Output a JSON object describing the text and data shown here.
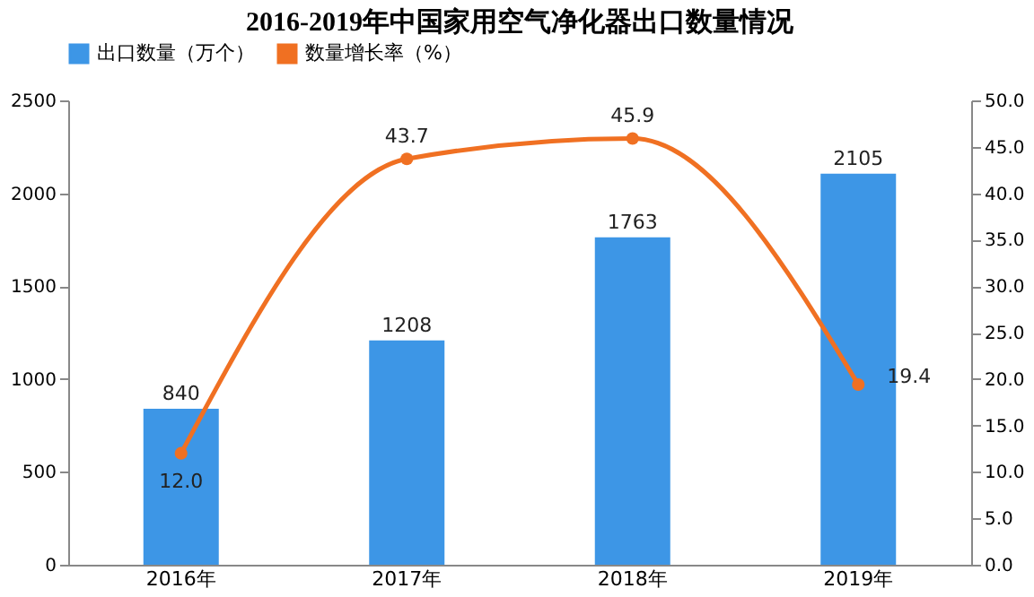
{
  "chart_data": {
    "type": "bar",
    "title": "2016-2019年中国家用空气净化器出口数量情况",
    "categories": [
      "2016年",
      "2017年",
      "2018年",
      "2019年"
    ],
    "series": [
      {
        "name": "出口数量（万个）",
        "color": "#3d96e6",
        "values": [
          840,
          1208,
          1763,
          2105
        ],
        "value_labels": [
          "840",
          "1208",
          "1763",
          "2105"
        ]
      },
      {
        "name": "数量增长率（%）",
        "type": "line",
        "axis": "y2",
        "color": "#f07022",
        "values": [
          12.0,
          43.7,
          45.9,
          19.4
        ],
        "value_labels": [
          "12.0",
          "43.7",
          "45.9",
          "19.4"
        ],
        "marker": "circle",
        "line_style": "solid"
      }
    ],
    "ylim": [
      0,
      2500
    ],
    "yticks": [
      0,
      500,
      1000,
      1500,
      2000,
      2500
    ],
    "y2lim": [
      0,
      50
    ],
    "y2ticks": [
      {
        "value": 0,
        "label": "0.0"
      },
      {
        "value": 5,
        "label": "5.0"
      },
      {
        "value": 10,
        "label": "10.0"
      },
      {
        "value": 15,
        "label": "15.0"
      },
      {
        "value": 20,
        "label": "20.0"
      },
      {
        "value": 25,
        "label": "25.0"
      },
      {
        "value": 30,
        "label": "30.0"
      },
      {
        "value": 35,
        "label": "35.0"
      },
      {
        "value": 40,
        "label": "40.0"
      },
      {
        "value": 45,
        "label": "45.0"
      },
      {
        "value": 50,
        "label": "50.0"
      }
    ],
    "legend": "top",
    "grid": false
  }
}
